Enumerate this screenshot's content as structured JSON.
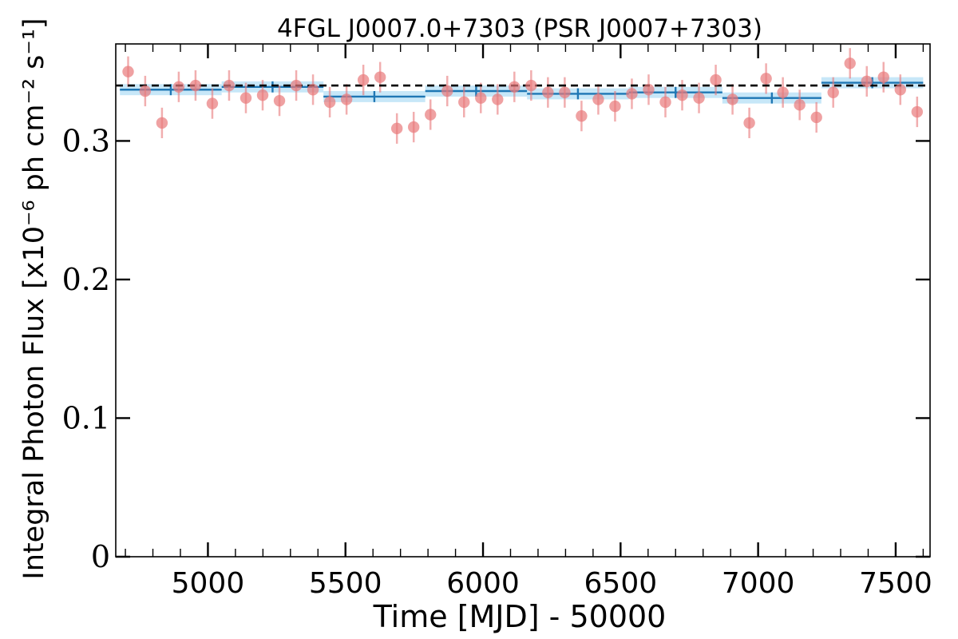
{
  "chart_data": {
    "type": "scatter",
    "title": "4FGL J0007.0+7303 (PSR J0007+7303)",
    "xlabel": "Time [MJD] - 50000",
    "ylabel": "Integral Photon Flux [x10⁻⁶ ph cm⁻² s⁻¹]",
    "xlim": [
      4665,
      7625
    ],
    "ylim": [
      0,
      0.37
    ],
    "x_ticks": [
      5000,
      5500,
      6000,
      6500,
      7000,
      7500
    ],
    "x_tick_labels": [
      "5000",
      "5500",
      "6000",
      "6500",
      "7000",
      "7500"
    ],
    "y_ticks": [
      0,
      0.1,
      0.2,
      0.3
    ],
    "y_tick_labels": [
      "0",
      "0.1",
      "0.2",
      "0.3"
    ],
    "grid": false,
    "average_flux": 0.34,
    "colors": {
      "points": "#e8797b",
      "bins": "#1f77b4",
      "bin_band": "#bde3f7",
      "average_line": "#000000"
    },
    "series": [
      {
        "kind": "points",
        "x": [
          4710,
          4772,
          4833,
          4894,
          4955,
          5016,
          5077,
          5138,
          5199,
          5260,
          5321,
          5382,
          5443,
          5504,
          5565,
          5626,
          5687,
          5748,
          5809,
          5870,
          5931,
          5992,
          6053,
          6114,
          6175,
          6236,
          6297,
          6358,
          6419,
          6480,
          6541,
          6602,
          6663,
          6724,
          6785,
          6846,
          6907,
          6968,
          7029,
          7090,
          7151,
          7212,
          7273,
          7334,
          7395,
          7456,
          7517,
          7578
        ],
        "y": [
          0.35,
          0.336,
          0.313,
          0.339,
          0.34,
          0.327,
          0.34,
          0.331,
          0.333,
          0.329,
          0.34,
          0.337,
          0.328,
          0.33,
          0.344,
          0.346,
          0.309,
          0.31,
          0.319,
          0.336,
          0.328,
          0.331,
          0.33,
          0.339,
          0.34,
          0.335,
          0.335,
          0.318,
          0.33,
          0.325,
          0.334,
          0.337,
          0.328,
          0.333,
          0.331,
          0.344,
          0.33,
          0.313,
          0.345,
          0.335,
          0.326,
          0.317,
          0.335,
          0.356,
          0.343,
          0.346,
          0.337,
          0.321
        ],
        "yerr": 0.011
      },
      {
        "kind": "bins",
        "x_start": [
          4680,
          5050,
          5420,
          5790,
          6160,
          6530,
          6870,
          7230
        ],
        "x_end": [
          5050,
          5420,
          5790,
          6160,
          6530,
          6870,
          7230,
          7600
        ],
        "x_center": [
          4865,
          5235,
          5605,
          5975,
          6345,
          6700,
          7050,
          7415
        ],
        "y": [
          0.337,
          0.339,
          0.332,
          0.336,
          0.334,
          0.335,
          0.331,
          0.342
        ],
        "yerr": 0.004
      }
    ]
  }
}
